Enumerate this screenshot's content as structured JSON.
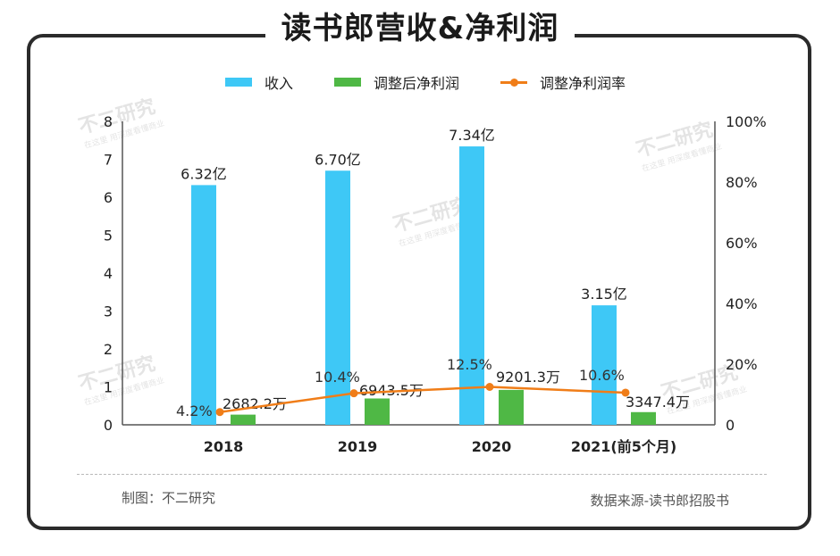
{
  "title": "读书郎营收&净利润",
  "legend": {
    "revenue": "收入",
    "profit": "调整后净利润",
    "margin": "调整净利润率"
  },
  "colors": {
    "revenue": "#3ec8f6",
    "profit": "#4fb845",
    "margin": "#f07d18"
  },
  "footer": {
    "left": "制图：不二研究",
    "right": "数据来源-读书郎招股书"
  },
  "watermark": {
    "main": "不二研究",
    "sub": "在这里 用深度看懂商业"
  },
  "chart_data": {
    "type": "bar",
    "categories": [
      "2018",
      "2019",
      "2020",
      "2021(前5个月)"
    ],
    "series": [
      {
        "name": "收入",
        "axis": "left",
        "values": [
          6.32,
          6.7,
          7.34,
          3.15
        ],
        "labels": [
          "6.32亿",
          "6.70亿",
          "7.34亿",
          "3.15亿"
        ]
      },
      {
        "name": "调整后净利润",
        "axis": "left",
        "values": [
          0.26822,
          0.69435,
          0.92013,
          0.33474
        ],
        "labels": [
          "2682.2万",
          "6943.5万",
          "9201.3万",
          "3347.4万"
        ]
      },
      {
        "name": "调整净利润率",
        "type": "line",
        "axis": "right",
        "values": [
          4.2,
          10.4,
          12.5,
          10.6
        ],
        "labels": [
          "4.2%",
          "10.4%",
          "12.5%",
          "10.6%"
        ]
      }
    ],
    "y_left": {
      "ylim": [
        0,
        8
      ],
      "ticks": [
        "0",
        "1",
        "2",
        "3",
        "4",
        "5",
        "6",
        "7",
        "8"
      ]
    },
    "y_right": {
      "ylim": [
        0,
        100
      ],
      "ticks": [
        "0",
        "20%",
        "40%",
        "60%",
        "80%",
        "100%"
      ]
    },
    "grid": false,
    "legend_position": "top"
  }
}
